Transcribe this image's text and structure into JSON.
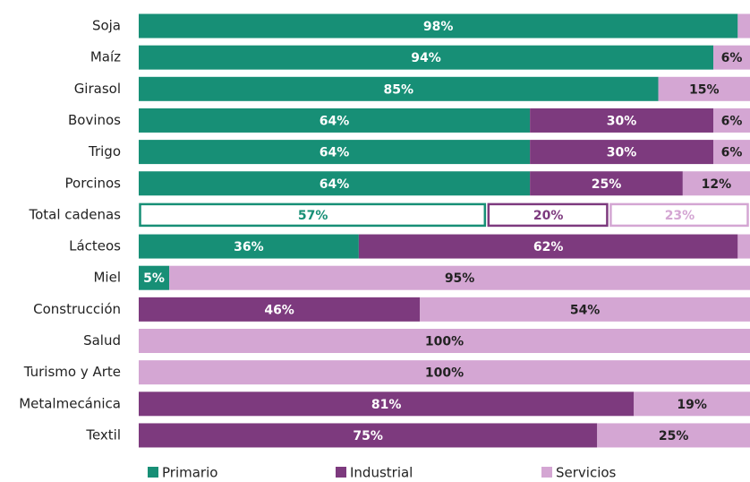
{
  "chart_data": {
    "type": "stacked-bar-horizontal",
    "categories": [
      "Soja",
      "Maíz",
      "Girasol",
      "Bovinos",
      "Trigo",
      "Porcinos",
      "Total cadenas",
      "Lácteos",
      "Miel",
      "Construcción",
      "Salud",
      "Turismo y Arte",
      "Metalmecánica",
      "Textil"
    ],
    "series": [
      {
        "name": "Primario",
        "color": "#178f76",
        "values": [
          98,
          94,
          85,
          64,
          64,
          64,
          57,
          36,
          5,
          null,
          null,
          null,
          null,
          null
        ],
        "value_labels": [
          "98%",
          "94%",
          "85%",
          "64%",
          "64%",
          "64%",
          "57%",
          "36%",
          "5%",
          null,
          null,
          null,
          null,
          null
        ]
      },
      {
        "name": "Industrial",
        "color": "#7d3a7e",
        "values": [
          null,
          null,
          null,
          30,
          30,
          25,
          20,
          62,
          null,
          46,
          null,
          null,
          81,
          75
        ],
        "value_labels": [
          null,
          null,
          null,
          "30%",
          "30%",
          "25%",
          "20%",
          "62%",
          null,
          "46%",
          null,
          null,
          "81%",
          "75%"
        ]
      },
      {
        "name": "Servicios",
        "color": "#d4a6d3",
        "values": [
          2,
          6,
          15,
          6,
          6,
          12,
          23,
          2,
          95,
          54,
          100,
          100,
          19,
          25
        ],
        "value_labels": [
          null,
          "6%",
          "15%",
          "6%",
          "6%",
          "12%",
          "23%",
          null,
          "95%",
          "54%",
          "100%",
          "100%",
          "19%",
          "25%"
        ]
      }
    ],
    "xlim": [
      0,
      100
    ],
    "outlined_category": 6,
    "legend": "bottom"
  }
}
